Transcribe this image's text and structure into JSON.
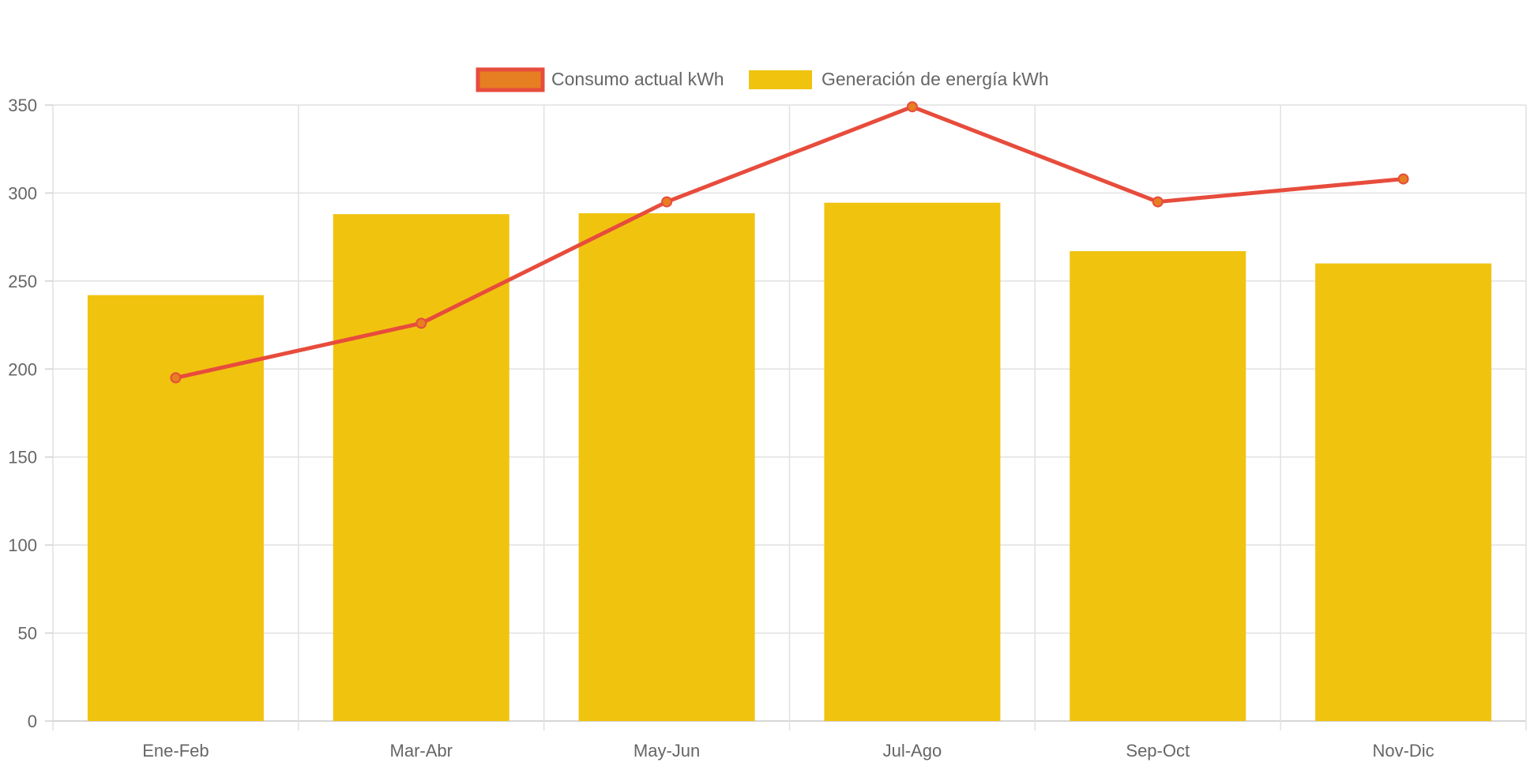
{
  "chart_data": {
    "type": "bar",
    "categories": [
      "Ene-Feb",
      "Mar-Abr",
      "May-Jun",
      "Jul-Ago",
      "Sep-Oct",
      "Nov-Dic"
    ],
    "series": [
      {
        "name": "Consumo actual kWh",
        "kind": "line",
        "color": "#e74c3c",
        "point_color": "#e67e22",
        "values": [
          195,
          226,
          295,
          349,
          295,
          308
        ]
      },
      {
        "name": "Generación de energía kWh",
        "kind": "bar",
        "color": "#f0c30f",
        "values": [
          242,
          288,
          288.5,
          294.5,
          267,
          260
        ]
      }
    ],
    "ylim": [
      0,
      350
    ],
    "yticks": [
      0,
      50,
      100,
      150,
      200,
      250,
      300,
      350
    ],
    "grid": true,
    "legend_position": "top"
  }
}
